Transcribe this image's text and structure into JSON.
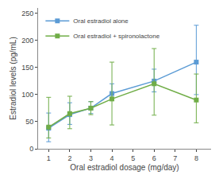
{
  "chart_data": {
    "type": "line",
    "x": [
      1,
      2,
      3,
      4,
      6,
      8
    ],
    "series": [
      {
        "name": "Oral estradiol alone",
        "color": "#5b9bd5",
        "marker": "square",
        "values": [
          38,
          63,
          75,
          102,
          125,
          160
        ],
        "yerr_low": [
          25,
          18,
          10,
          12,
          20,
          60
        ],
        "yerr_high": [
          28,
          22,
          12,
          18,
          22,
          68
        ]
      },
      {
        "name": "Oral estradiol + spironolactone",
        "color": "#70ad47",
        "marker": "square",
        "values": [
          40,
          65,
          75,
          92,
          120,
          90
        ],
        "yerr_low": [
          20,
          28,
          12,
          48,
          58,
          42
        ],
        "yerr_high": [
          55,
          32,
          12,
          68,
          65,
          48
        ]
      }
    ],
    "x_label": "Oral estradiol dosage (mg/day)",
    "y_label": "Estradiol levels (pg/mL)",
    "xlim": [
      0.5,
      8.7
    ],
    "xticks": [
      1,
      2,
      3,
      4,
      5,
      6,
      7,
      8
    ],
    "ylim": [
      0,
      260
    ],
    "yticks": [
      0,
      50,
      100,
      150,
      200,
      250
    ],
    "grid": false,
    "legend": "upper left"
  }
}
